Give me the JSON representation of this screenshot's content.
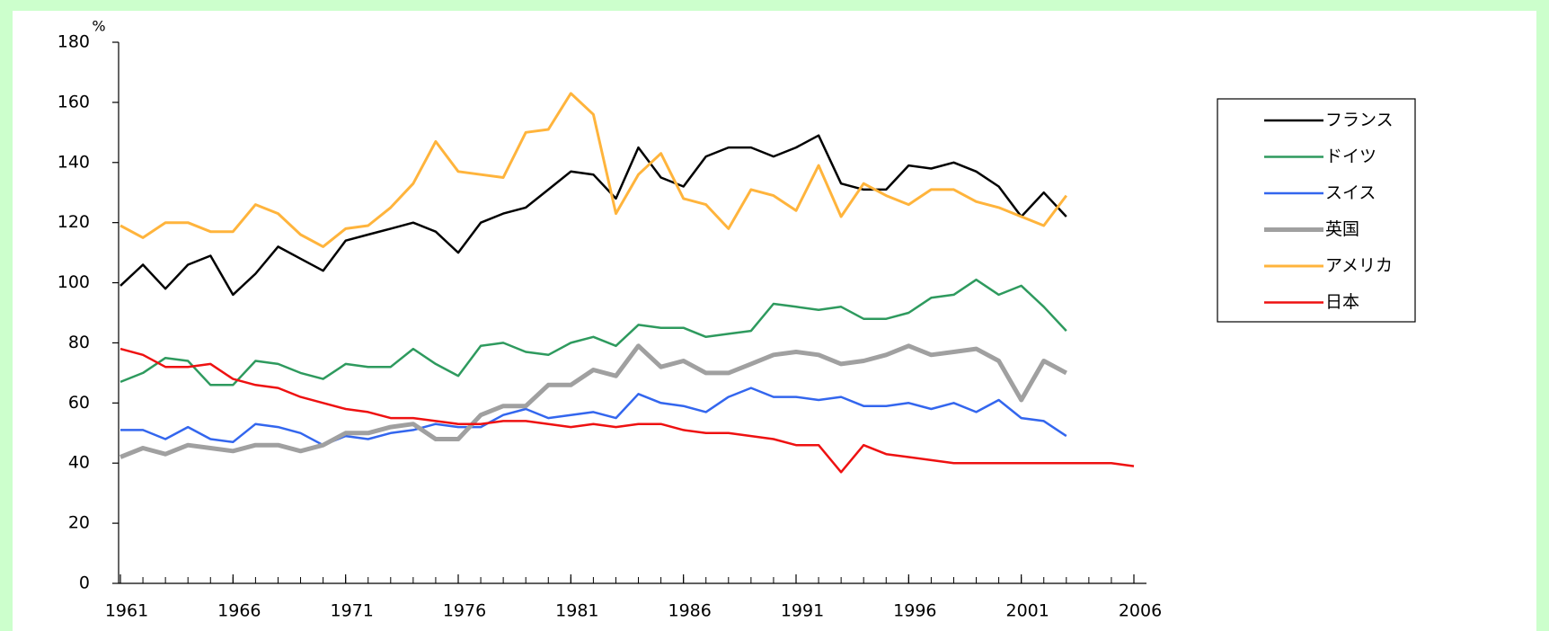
{
  "chart_data": {
    "type": "line",
    "y_unit": "%",
    "x": [
      1961,
      1962,
      1963,
      1964,
      1965,
      1966,
      1967,
      1968,
      1969,
      1970,
      1971,
      1972,
      1973,
      1974,
      1975,
      1976,
      1977,
      1978,
      1979,
      1980,
      1981,
      1982,
      1983,
      1984,
      1985,
      1986,
      1987,
      1988,
      1989,
      1990,
      1991,
      1992,
      1993,
      1994,
      1995,
      1996,
      1997,
      1998,
      1999,
      2000,
      2001,
      2002,
      2003,
      2004,
      2005,
      2006
    ],
    "xlim": [
      1961,
      2006
    ],
    "xticks": [
      1961,
      1966,
      1971,
      1976,
      1981,
      1986,
      1991,
      1996,
      2001,
      2006
    ],
    "ylim": [
      0,
      180
    ],
    "yticks": [
      0,
      20,
      40,
      60,
      80,
      100,
      120,
      140,
      160,
      180
    ],
    "legend": "right",
    "series": [
      {
        "name": "フランス",
        "color": "#000000",
        "width": 2.5,
        "values": [
          99,
          106,
          98,
          106,
          109,
          96,
          103,
          112,
          108,
          104,
          114,
          116,
          118,
          120,
          117,
          110,
          120,
          123,
          125,
          131,
          137,
          136,
          128,
          145,
          135,
          132,
          142,
          145,
          145,
          142,
          145,
          149,
          133,
          131,
          131,
          139,
          138,
          140,
          137,
          132,
          122,
          130,
          122,
          null,
          null,
          null
        ]
      },
      {
        "name": "ドイツ",
        "color": "#2e9a5e",
        "width": 2.5,
        "values": [
          67,
          70,
          75,
          74,
          66,
          66,
          74,
          73,
          70,
          68,
          73,
          72,
          72,
          78,
          73,
          69,
          79,
          80,
          77,
          76,
          80,
          82,
          79,
          86,
          85,
          85,
          82,
          83,
          84,
          93,
          92,
          91,
          92,
          88,
          88,
          90,
          95,
          96,
          101,
          96,
          99,
          92,
          84,
          null,
          null,
          null
        ]
      },
      {
        "name": "スイス",
        "color": "#3366ee",
        "width": 2.5,
        "values": [
          51,
          51,
          48,
          52,
          48,
          47,
          53,
          52,
          50,
          46,
          49,
          48,
          50,
          51,
          53,
          52,
          52,
          56,
          58,
          55,
          56,
          57,
          55,
          63,
          60,
          59,
          57,
          62,
          65,
          62,
          62,
          61,
          62,
          59,
          59,
          60,
          58,
          60,
          57,
          61,
          55,
          54,
          49,
          null,
          null,
          null
        ]
      },
      {
        "name": "英国",
        "color": "#a0a0a0",
        "width": 5,
        "values": [
          42,
          45,
          43,
          46,
          45,
          44,
          46,
          46,
          44,
          46,
          50,
          50,
          52,
          53,
          48,
          48,
          56,
          59,
          59,
          66,
          66,
          71,
          69,
          79,
          72,
          74,
          70,
          70,
          73,
          76,
          77,
          76,
          73,
          74,
          76,
          79,
          76,
          77,
          78,
          74,
          61,
          74,
          70,
          null,
          null,
          null
        ]
      },
      {
        "name": "アメリカ",
        "color": "#ffb43c",
        "width": 3,
        "values": [
          119,
          115,
          120,
          120,
          117,
          117,
          126,
          123,
          116,
          112,
          118,
          119,
          125,
          133,
          147,
          137,
          136,
          135,
          150,
          151,
          163,
          156,
          123,
          136,
          143,
          128,
          126,
          118,
          131,
          129,
          124,
          139,
          122,
          133,
          129,
          126,
          131,
          131,
          127,
          125,
          122,
          119,
          129,
          null,
          null,
          null
        ]
      },
      {
        "name": "日本",
        "color": "#ee1111",
        "width": 2.5,
        "values": [
          78,
          76,
          72,
          72,
          73,
          68,
          66,
          65,
          62,
          60,
          58,
          57,
          55,
          55,
          54,
          53,
          53,
          54,
          54,
          53,
          52,
          53,
          52,
          53,
          53,
          51,
          50,
          50,
          49,
          48,
          46,
          46,
          37,
          46,
          43,
          42,
          41,
          40,
          40,
          40,
          40,
          40,
          40,
          40,
          40,
          39
        ]
      }
    ]
  }
}
